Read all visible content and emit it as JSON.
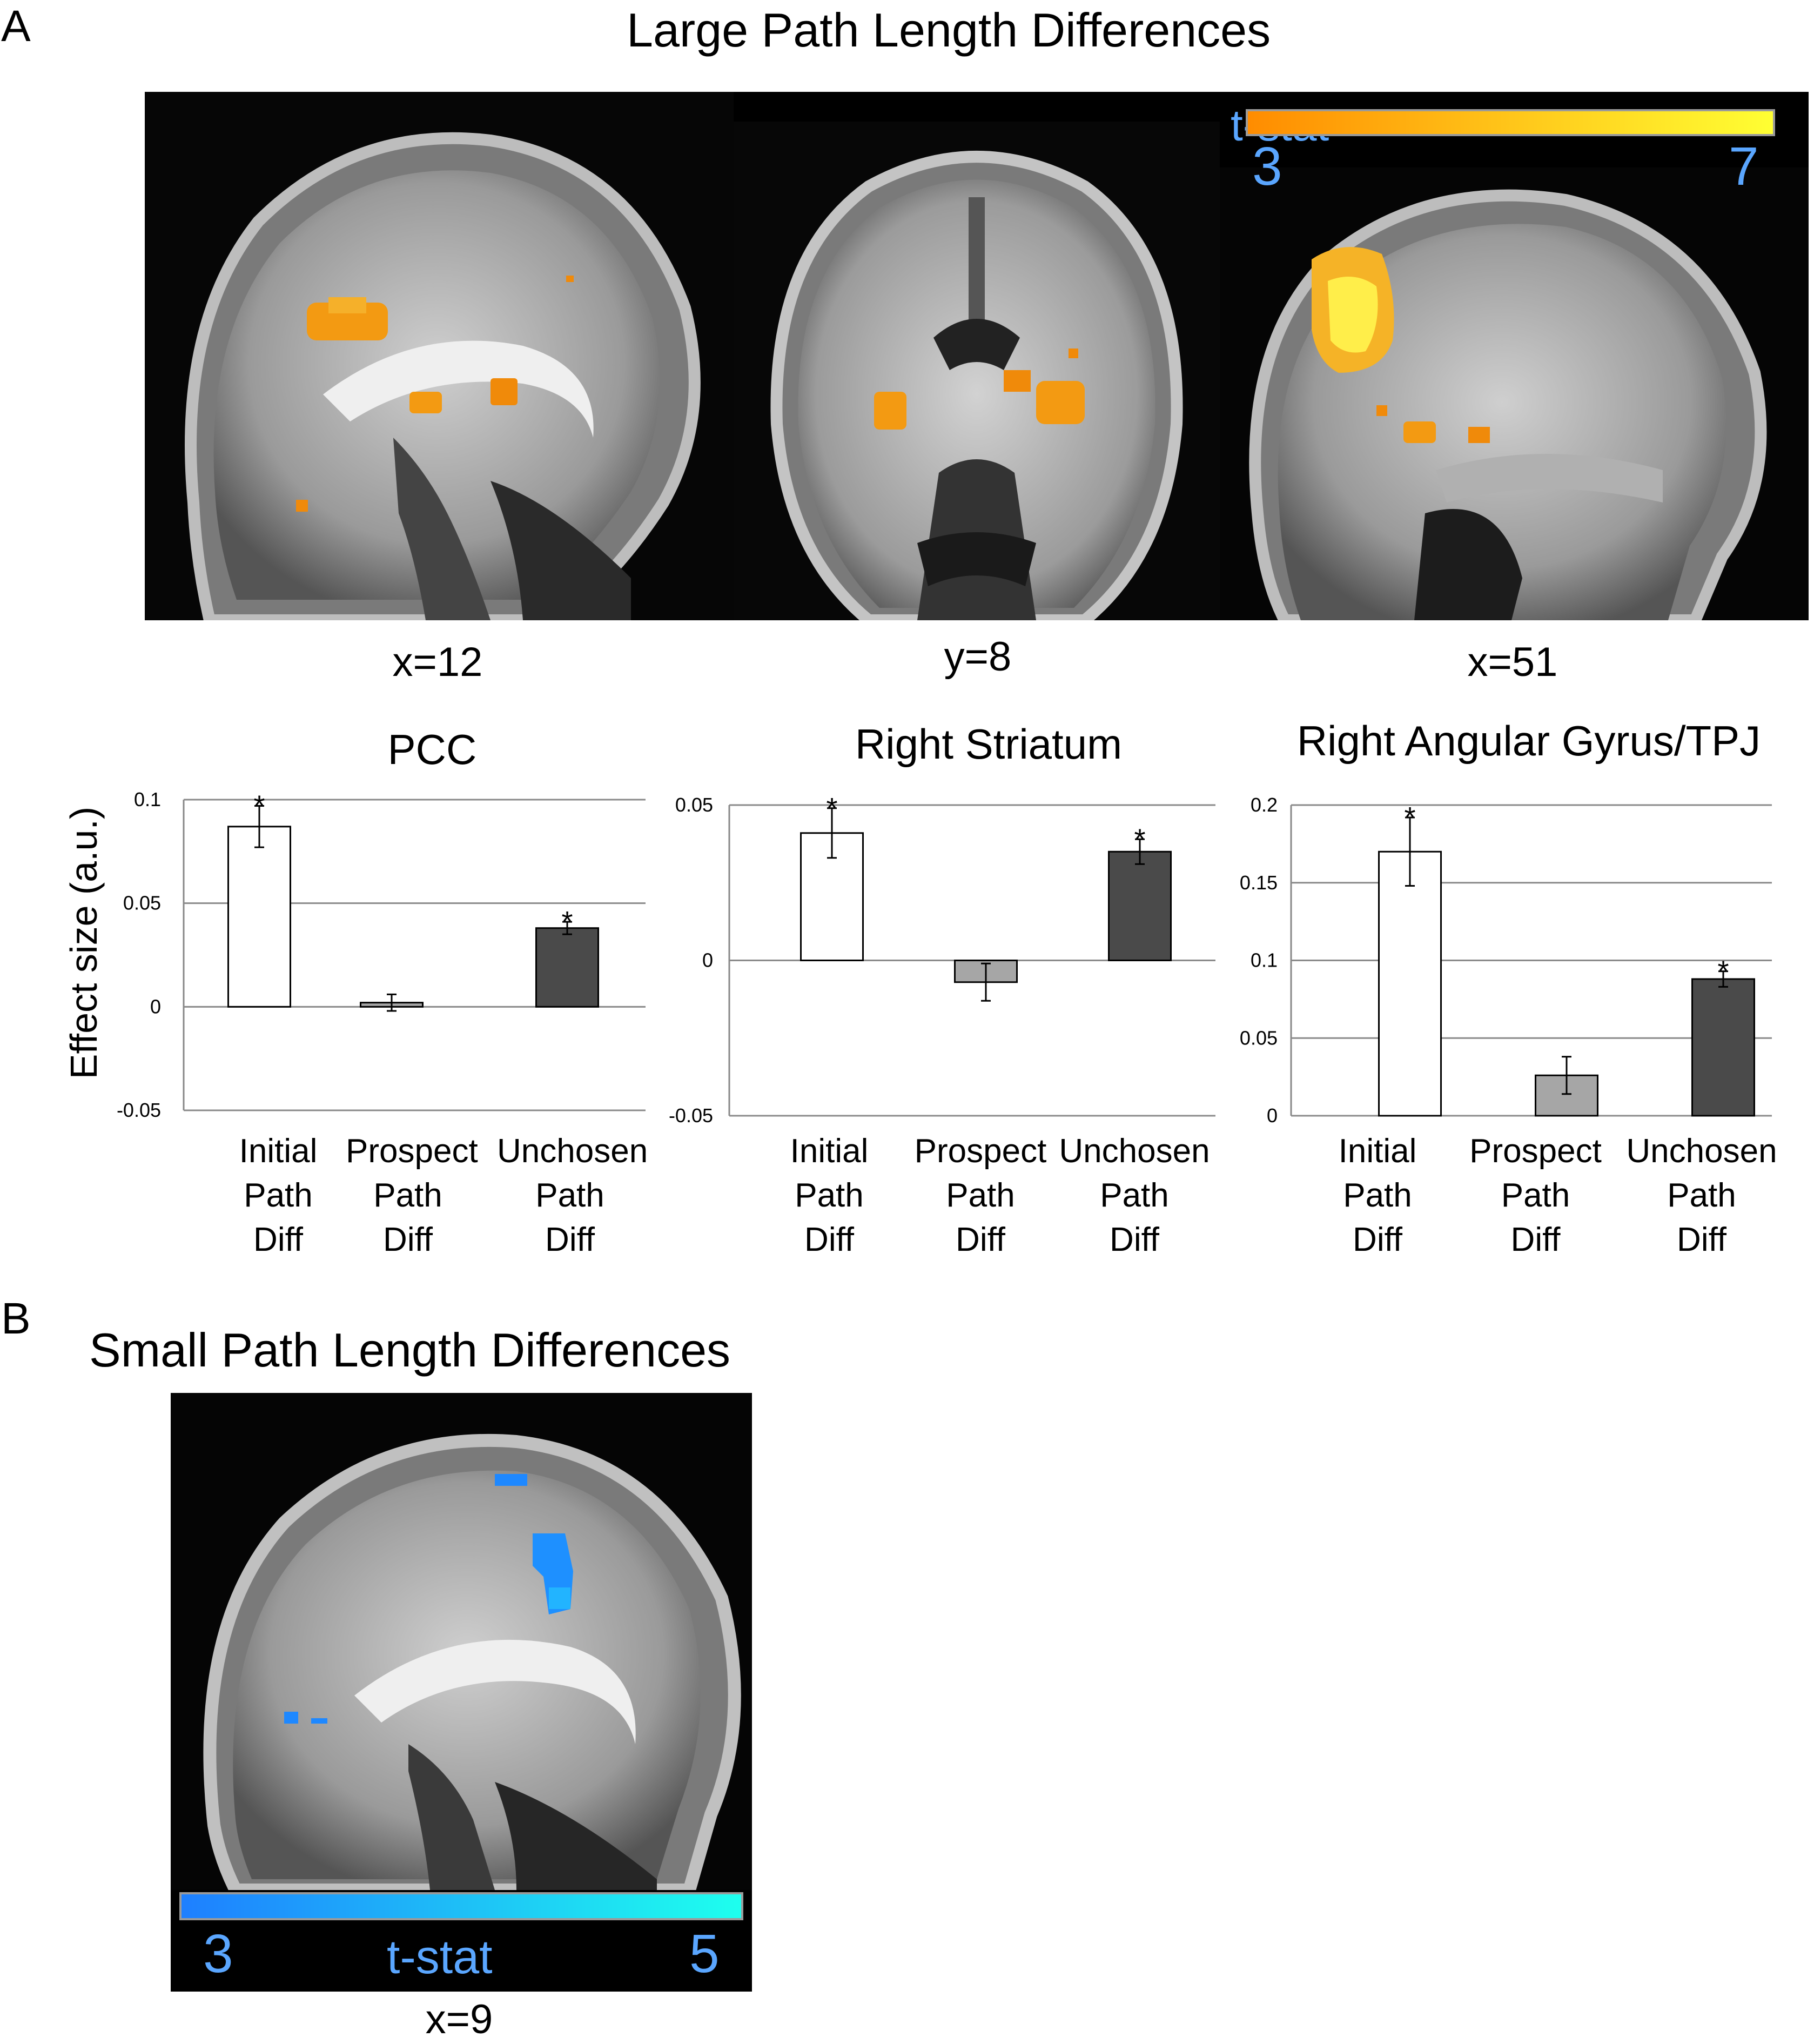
{
  "panel_a": {
    "letter": "A",
    "title": "Large Path Length Differences",
    "colorbar": {
      "label": "t-stat",
      "min": "3",
      "max": "7",
      "color_low": "#ff8c00",
      "color_high": "#ffff33"
    },
    "slices": [
      {
        "coord": "x=12"
      },
      {
        "coord": "y=8"
      },
      {
        "coord": "x=51"
      }
    ]
  },
  "panel_b": {
    "letter": "B",
    "title": "Small Path Length Differences",
    "colorbar": {
      "label": "t-stat",
      "min": "3",
      "max": "5",
      "color_low": "#1e7fff",
      "color_high": "#1effee"
    },
    "slice": {
      "coord": "x=9"
    }
  },
  "y_axis_label": "Effect size (a.u.)",
  "chart_data": [
    {
      "type": "bar",
      "title": "PCC",
      "ylabel": "Effect size (a.u.)",
      "categories": [
        [
          "Initial",
          "Path",
          "Diff"
        ],
        [
          "Prospect",
          "Path",
          "Diff"
        ],
        [
          "Unchosen",
          "Path",
          "Diff"
        ]
      ],
      "values": [
        0.087,
        0.002,
        0.038
      ],
      "errors": [
        0.01,
        0.004,
        0.003
      ],
      "significant": [
        true,
        false,
        true
      ],
      "bar_colors": [
        "#ffffff",
        "#a6a6a6",
        "#4a4a4a"
      ],
      "ylim": [
        -0.05,
        0.1
      ],
      "yticks": [
        -0.05,
        0,
        0.05,
        0.1
      ],
      "ytick_labels": [
        "-0.05",
        "0",
        "0.05",
        "0.1"
      ],
      "grid": true
    },
    {
      "type": "bar",
      "title": "Right Striatum",
      "categories": [
        [
          "Initial",
          "Path",
          "Diff"
        ],
        [
          "Prospect",
          "Path",
          "Diff"
        ],
        [
          "Unchosen",
          "Path",
          "Diff"
        ]
      ],
      "values": [
        0.041,
        -0.007,
        0.035
      ],
      "errors": [
        0.008,
        0.006,
        0.004
      ],
      "significant": [
        true,
        false,
        true
      ],
      "bar_colors": [
        "#ffffff",
        "#a6a6a6",
        "#4a4a4a"
      ],
      "ylim": [
        -0.05,
        0.05
      ],
      "yticks": [
        -0.05,
        0,
        0.05
      ],
      "ytick_labels": [
        "-0.05",
        "0",
        "0.05"
      ],
      "grid": true
    },
    {
      "type": "bar",
      "title": "Right Angular Gyrus/TPJ",
      "categories": [
        [
          "Initial",
          "Path",
          "Diff"
        ],
        [
          "Prospect",
          "Path",
          "Diff"
        ],
        [
          "Unchosen",
          "Path",
          "Diff"
        ]
      ],
      "values": [
        0.17,
        0.026,
        0.088
      ],
      "errors": [
        0.022,
        0.012,
        0.005
      ],
      "significant": [
        true,
        false,
        true
      ],
      "bar_colors": [
        "#ffffff",
        "#a6a6a6",
        "#4a4a4a"
      ],
      "ylim": [
        0,
        0.2
      ],
      "yticks": [
        0,
        0.05,
        0.1,
        0.15,
        0.2
      ],
      "ytick_labels": [
        "0",
        "0.05",
        "0.1",
        "0.15",
        "0.2"
      ],
      "grid": true
    }
  ]
}
